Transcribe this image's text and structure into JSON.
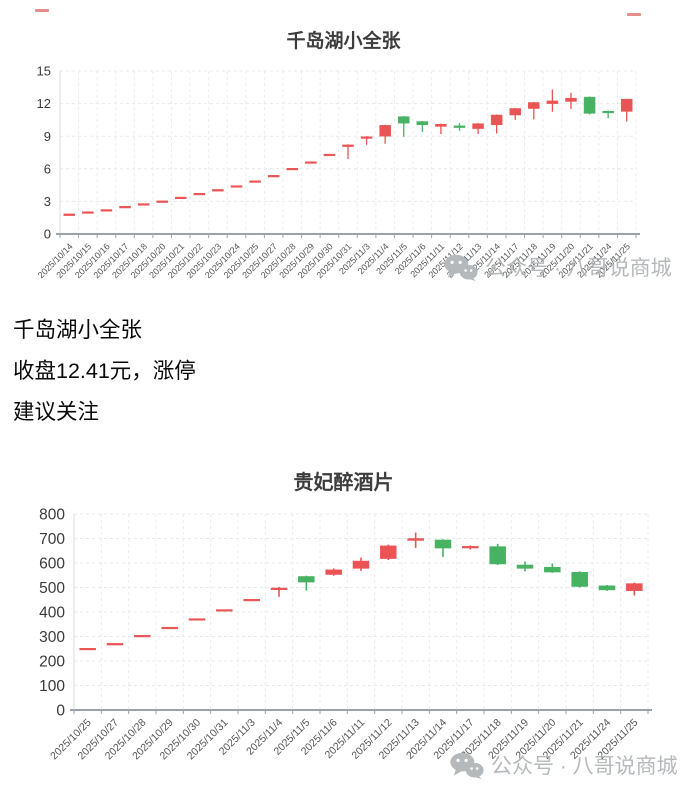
{
  "summary": {
    "lines": [
      "千岛湖小全张",
      "收盘12.41元，涨停",
      "建议关注"
    ]
  },
  "watermark": {
    "text": "公众号 · 八哥说商城",
    "icon": "wechat-icon",
    "color": "#b6b9bc"
  },
  "colors": {
    "up": "#eb5454",
    "down": "#47b262",
    "grid": "#e4e9ed",
    "axis": "#9aa3ab"
  },
  "chart_data": [
    {
      "type": "candlestick",
      "title": "千岛湖小全张",
      "value_format": "open-close-low-high",
      "ylim": [
        0,
        15
      ],
      "yticks": [
        0,
        3,
        6,
        9,
        12,
        15
      ],
      "grid": true,
      "legend": "none",
      "up_color": "#eb5454",
      "down_color": "#47b262",
      "categories": [
        "2025/10/14",
        "2025/10/15",
        "2025/10/16",
        "2025/10/17",
        "2025/10/18",
        "2025/10/20",
        "2025/10/21",
        "2025/10/22",
        "2025/10/23",
        "2025/10/24",
        "2025/10/25",
        "2025/10/27",
        "2025/10/28",
        "2025/10/29",
        "2025/10/30",
        "2025/10/31",
        "2025/11/3",
        "2025/11/4",
        "2025/11/5",
        "2025/11/6",
        "2025/11/11",
        "2025/11/12",
        "2025/11/13",
        "2025/11/14",
        "2025/11/17",
        "2025/11/18",
        "2025/11/19",
        "2025/11/20",
        "2025/11/21",
        "2025/11/24",
        "2025/11/25"
      ],
      "values": [
        [
          1.85,
          1.85,
          1.85,
          1.85
        ],
        [
          2.05,
          2.05,
          2.05,
          2.05
        ],
        [
          2.25,
          2.25,
          2.25,
          2.25
        ],
        [
          2.55,
          2.55,
          2.55,
          2.55
        ],
        [
          2.8,
          2.8,
          2.8,
          2.8
        ],
        [
          3.05,
          3.05,
          3.05,
          3.05
        ],
        [
          3.4,
          3.4,
          3.4,
          3.4
        ],
        [
          3.75,
          3.75,
          3.75,
          3.75
        ],
        [
          4.1,
          4.1,
          4.1,
          4.1
        ],
        [
          4.45,
          4.45,
          4.45,
          4.45
        ],
        [
          4.9,
          4.9,
          4.9,
          4.9
        ],
        [
          5.4,
          5.4,
          5.4,
          5.4
        ],
        [
          6.05,
          6.05,
          6.05,
          6.05
        ],
        [
          6.65,
          6.65,
          6.65,
          6.65
        ],
        [
          7.35,
          7.35,
          7.35,
          7.35
        ],
        [
          8.1,
          8.2,
          6.9,
          8.25
        ],
        [
          8.85,
          8.95,
          8.2,
          9.0
        ],
        [
          9.0,
          10.0,
          8.3,
          10.05
        ],
        [
          10.8,
          10.2,
          8.95,
          10.85
        ],
        [
          10.35,
          10.05,
          9.4,
          10.4
        ],
        [
          9.9,
          10.1,
          9.2,
          10.15
        ],
        [
          9.95,
          9.85,
          9.5,
          10.2
        ],
        [
          9.7,
          10.15,
          9.2,
          10.2
        ],
        [
          10.05,
          10.95,
          9.25,
          11.0
        ],
        [
          10.95,
          11.55,
          10.5,
          11.6
        ],
        [
          11.55,
          12.1,
          10.55,
          12.15
        ],
        [
          12.0,
          12.25,
          11.25,
          13.3
        ],
        [
          12.2,
          12.5,
          11.5,
          13.0
        ],
        [
          12.6,
          11.1,
          11.0,
          12.65
        ],
        [
          11.3,
          11.28,
          10.65,
          11.35
        ],
        [
          11.28,
          12.41,
          10.35,
          12.41
        ]
      ]
    },
    {
      "type": "candlestick",
      "title": "贵妃醉酒片",
      "value_format": "open-close-low-high",
      "ylim": [
        0,
        800
      ],
      "yticks": [
        0,
        100,
        200,
        300,
        400,
        500,
        600,
        700,
        800
      ],
      "grid": true,
      "legend": "none",
      "up_color": "#eb5454",
      "down_color": "#47b262",
      "categories": [
        "2025/10/25",
        "2025/10/27",
        "2025/10/28",
        "2025/10/29",
        "2025/10/30",
        "2025/10/31",
        "2025/11/3",
        "2025/11/4",
        "2025/11/5",
        "2025/11/6",
        "2025/11/11",
        "2025/11/12",
        "2025/11/13",
        "2025/11/14",
        "2025/11/17",
        "2025/11/18",
        "2025/11/19",
        "2025/11/20",
        "2025/11/21",
        "2025/11/24",
        "2025/11/25"
      ],
      "values": [
        [
          252,
          252,
          252,
          252
        ],
        [
          272,
          272,
          272,
          272
        ],
        [
          305,
          305,
          305,
          305
        ],
        [
          338,
          338,
          338,
          338
        ],
        [
          373,
          373,
          373,
          373
        ],
        [
          410,
          410,
          410,
          410
        ],
        [
          452,
          452,
          452,
          452
        ],
        [
          492,
          498,
          462,
          502
        ],
        [
          545,
          522,
          488,
          548
        ],
        [
          553,
          572,
          548,
          578
        ],
        [
          578,
          608,
          568,
          622
        ],
        [
          618,
          670,
          612,
          675
        ],
        [
          692,
          700,
          662,
          724
        ],
        [
          694,
          661,
          624,
          697
        ],
        [
          664,
          668,
          655,
          672
        ],
        [
          667,
          596,
          592,
          678
        ],
        [
          592,
          578,
          566,
          606
        ],
        [
          583,
          563,
          560,
          598
        ],
        [
          562,
          504,
          500,
          566
        ],
        [
          507,
          490,
          486,
          510
        ],
        [
          487,
          516,
          467,
          520
        ]
      ]
    }
  ]
}
